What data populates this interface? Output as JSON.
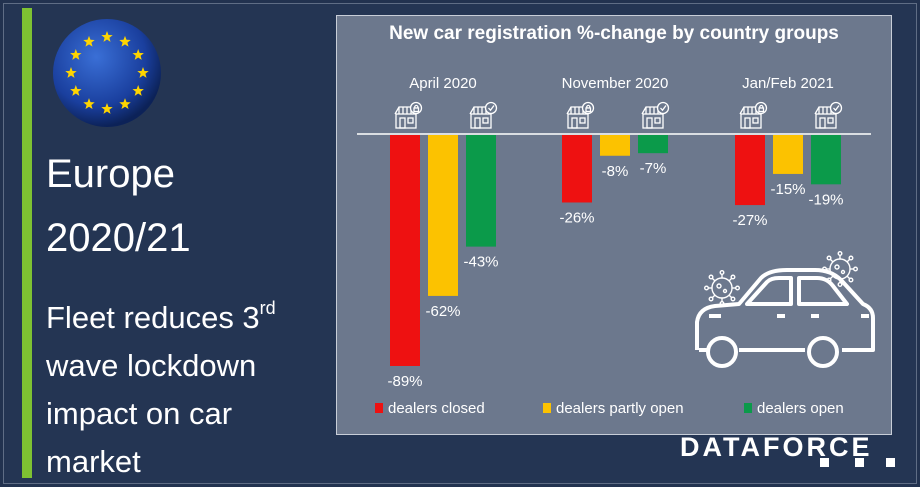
{
  "left": {
    "title_line1": "Europe",
    "title_line2": "2020/21",
    "subtitle_line1_a": "Fleet reduces 3",
    "subtitle_line1_sup": "rd",
    "subtitle_line2": "wave lockdown",
    "subtitle_line3": "impact on car",
    "subtitle_line4": "market"
  },
  "brand": "DATAFORCE",
  "colors": {
    "closed": "#ee1111",
    "partly_open": "#fcc200",
    "open": "#0b9a4a",
    "panel": "#6c788d",
    "accent_green": "#7ec232"
  },
  "icons": [
    "eu-flag-icon",
    "shop-locked-icon",
    "shop-check-icon",
    "car-icon",
    "virus-icon"
  ],
  "chart_data": {
    "type": "bar",
    "title": "New car registration %-change  by country groups",
    "categories": [
      "April 2020",
      "November 2020",
      "Jan/Feb 2021"
    ],
    "series": [
      {
        "name": "dealers closed",
        "values": [
          -89,
          -26,
          -27
        ],
        "labels": [
          "-89%",
          "-26%",
          "-27%"
        ]
      },
      {
        "name": "dealers partly open",
        "values": [
          -62,
          -8,
          -15
        ],
        "labels": [
          "-62%",
          "-8%",
          "-15%"
        ]
      },
      {
        "name": "dealers open",
        "values": [
          -43,
          -7,
          -19
        ],
        "labels": [
          "-43%",
          "-7%",
          "-19%"
        ]
      }
    ],
    "ylim": [
      -89,
      0
    ],
    "grid": false,
    "legend": "bottom"
  }
}
